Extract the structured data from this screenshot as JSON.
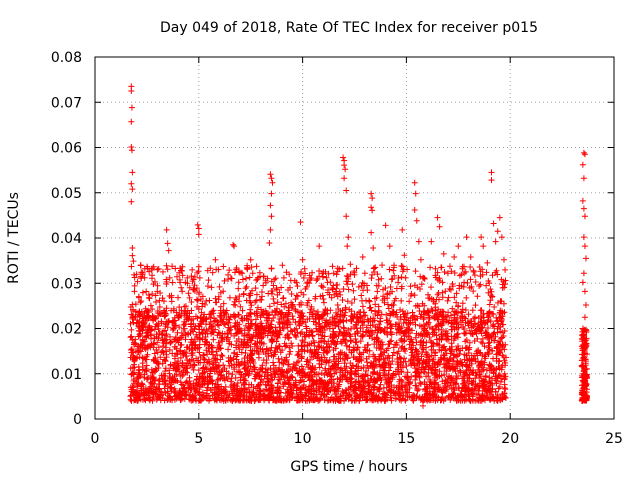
{
  "chart_data": {
    "type": "scatter",
    "title": "Day 049 of 2018, Rate Of TEC Index for receiver p015",
    "xlabel": "GPS time / hours",
    "ylabel": "ROTI / TECUs",
    "xlim": [
      0,
      25
    ],
    "ylim": [
      0,
      0.08
    ],
    "grid": true,
    "marker": "+",
    "marker_color": "#ff0000",
    "x_ticks": [
      "0",
      "5",
      "10",
      "15",
      "20",
      "25"
    ],
    "y_ticks": [
      "0",
      "0.01",
      "0.02",
      "0.03",
      "0.04",
      "0.05",
      "0.06",
      "0.07",
      "0.08"
    ],
    "series": [
      {
        "points": [
          [
            1.75,
            0.0735
          ],
          [
            1.75,
            0.0725
          ],
          [
            1.78,
            0.0688
          ],
          [
            1.75,
            0.0657
          ],
          [
            1.75,
            0.0601
          ],
          [
            1.78,
            0.0594
          ],
          [
            1.8,
            0.0545
          ],
          [
            1.75,
            0.052
          ],
          [
            1.8,
            0.0508
          ],
          [
            1.75,
            0.048
          ],
          [
            1.8,
            0.0378
          ],
          [
            1.8,
            0.0361
          ],
          [
            1.85,
            0.0349
          ],
          [
            1.9,
            0.0282
          ],
          [
            1.75,
            0.0231
          ],
          [
            1.8,
            0.0175
          ],
          [
            1.85,
            0.0139
          ],
          [
            1.9,
            0.0114
          ],
          [
            1.75,
            0.0098
          ],
          [
            1.8,
            0.0071
          ],
          [
            1.85,
            0.0052
          ],
          [
            1.9,
            0.0042
          ],
          [
            2.2,
            0.034
          ],
          [
            2.4,
            0.0332
          ],
          [
            2.6,
            0.0268
          ],
          [
            2.8,
            0.022
          ],
          [
            3.0,
            0.0282
          ],
          [
            3.1,
            0.019
          ],
          [
            2.3,
            0.0115
          ],
          [
            2.5,
            0.0088
          ],
          [
            2.7,
            0.0062
          ],
          [
            2.9,
            0.0105
          ],
          [
            3.45,
            0.0418
          ],
          [
            3.5,
            0.0388
          ],
          [
            3.55,
            0.0372
          ],
          [
            3.5,
            0.0331
          ],
          [
            3.6,
            0.0312
          ],
          [
            3.7,
            0.026
          ],
          [
            3.8,
            0.0215
          ],
          [
            3.9,
            0.0172
          ],
          [
            3.4,
            0.0128
          ],
          [
            3.6,
            0.009
          ],
          [
            3.8,
            0.0062
          ],
          [
            3.95,
            0.0109
          ],
          [
            4.1,
            0.0302
          ],
          [
            4.2,
            0.0282
          ],
          [
            4.3,
            0.0248
          ],
          [
            4.4,
            0.0225
          ],
          [
            4.5,
            0.0278
          ],
          [
            4.6,
            0.019
          ],
          [
            4.7,
            0.0152
          ],
          [
            4.8,
            0.0118
          ],
          [
            4.2,
            0.0095
          ],
          [
            4.5,
            0.0067
          ],
          [
            4.7,
            0.0051
          ],
          [
            4.95,
            0.0429
          ],
          [
            5.0,
            0.0421
          ],
          [
            5.0,
            0.0408
          ],
          [
            5.05,
            0.0312
          ],
          [
            5.1,
            0.0265
          ],
          [
            5.2,
            0.0221
          ],
          [
            5.3,
            0.0176
          ],
          [
            5.4,
            0.0143
          ],
          [
            5.0,
            0.0108
          ],
          [
            5.2,
            0.0082
          ],
          [
            5.4,
            0.0056
          ],
          [
            5.8,
            0.0352
          ],
          [
            6.0,
            0.0292
          ],
          [
            6.2,
            0.0255
          ],
          [
            6.4,
            0.0212
          ],
          [
            6.5,
            0.0268
          ],
          [
            5.7,
            0.0121
          ],
          [
            6.1,
            0.0096
          ],
          [
            6.3,
            0.0071
          ],
          [
            6.65,
            0.0385
          ],
          [
            6.7,
            0.0382
          ],
          [
            6.8,
            0.033
          ],
          [
            6.9,
            0.0288
          ],
          [
            7.0,
            0.0248
          ],
          [
            7.2,
            0.0222
          ],
          [
            7.3,
            0.0292
          ],
          [
            6.7,
            0.0121
          ],
          [
            7.0,
            0.0092
          ],
          [
            7.2,
            0.0067
          ],
          [
            7.5,
            0.0352
          ],
          [
            7.6,
            0.0322
          ],
          [
            7.8,
            0.0275
          ],
          [
            8.0,
            0.0242
          ],
          [
            8.1,
            0.0295
          ],
          [
            7.6,
            0.0128
          ],
          [
            7.9,
            0.0095
          ],
          [
            8.1,
            0.0062
          ],
          [
            8.45,
            0.0541
          ],
          [
            8.5,
            0.0532
          ],
          [
            8.55,
            0.0522
          ],
          [
            8.5,
            0.0498
          ],
          [
            8.45,
            0.0472
          ],
          [
            8.5,
            0.0448
          ],
          [
            8.45,
            0.0418
          ],
          [
            8.4,
            0.0389
          ],
          [
            8.5,
            0.0332
          ],
          [
            8.6,
            0.0295
          ],
          [
            8.8,
            0.0258
          ],
          [
            8.9,
            0.0221
          ],
          [
            8.5,
            0.0141
          ],
          [
            8.7,
            0.0099
          ],
          [
            8.9,
            0.0068
          ],
          [
            9.1,
            0.0312
          ],
          [
            9.3,
            0.0285
          ],
          [
            9.5,
            0.0252
          ],
          [
            9.7,
            0.0302
          ],
          [
            9.2,
            0.0128
          ],
          [
            9.5,
            0.0092
          ],
          [
            9.7,
            0.0063
          ],
          [
            9.9,
            0.0435
          ],
          [
            10.0,
            0.0352
          ],
          [
            10.1,
            0.0332
          ],
          [
            10.2,
            0.0292
          ],
          [
            10.3,
            0.0262
          ],
          [
            10.5,
            0.0226
          ],
          [
            9.95,
            0.0135
          ],
          [
            10.2,
            0.0097
          ],
          [
            10.4,
            0.0066
          ],
          [
            10.8,
            0.0382
          ],
          [
            11.0,
            0.0325
          ],
          [
            11.2,
            0.0302
          ],
          [
            11.4,
            0.0268
          ],
          [
            11.5,
            0.0322
          ],
          [
            10.9,
            0.0131
          ],
          [
            11.2,
            0.0098
          ],
          [
            11.4,
            0.007
          ],
          [
            11.95,
            0.0578
          ],
          [
            12.0,
            0.0571
          ],
          [
            12.0,
            0.0561
          ],
          [
            12.05,
            0.0552
          ],
          [
            12.0,
            0.0532
          ],
          [
            12.1,
            0.0505
          ],
          [
            12.1,
            0.0448
          ],
          [
            12.2,
            0.0402
          ],
          [
            12.15,
            0.0382
          ],
          [
            12.3,
            0.0342
          ],
          [
            12.4,
            0.0298
          ],
          [
            12.5,
            0.0265
          ],
          [
            12.1,
            0.0142
          ],
          [
            12.3,
            0.0102
          ],
          [
            12.5,
            0.0071
          ],
          [
            12.9,
            0.0358
          ],
          [
            13.0,
            0.0322
          ],
          [
            13.1,
            0.0295
          ],
          [
            13.2,
            0.0262
          ],
          [
            12.8,
            0.0132
          ],
          [
            13.0,
            0.0094
          ],
          [
            13.2,
            0.0066
          ],
          [
            13.3,
            0.0498
          ],
          [
            13.35,
            0.0488
          ],
          [
            13.3,
            0.0468
          ],
          [
            13.35,
            0.0461
          ],
          [
            13.3,
            0.0412
          ],
          [
            13.4,
            0.0378
          ],
          [
            13.5,
            0.0335
          ],
          [
            13.6,
            0.0282
          ],
          [
            13.4,
            0.0142
          ],
          [
            13.6,
            0.0101
          ],
          [
            13.7,
            0.0068
          ],
          [
            14.0,
            0.0428
          ],
          [
            14.2,
            0.0382
          ],
          [
            14.4,
            0.0335
          ],
          [
            14.6,
            0.0302
          ],
          [
            14.8,
            0.0418
          ],
          [
            14.9,
            0.0362
          ],
          [
            14.1,
            0.0135
          ],
          [
            14.5,
            0.0098
          ],
          [
            14.8,
            0.0064
          ],
          [
            15.4,
            0.0522
          ],
          [
            15.45,
            0.0498
          ],
          [
            15.4,
            0.0462
          ],
          [
            15.5,
            0.0438
          ],
          [
            15.6,
            0.0392
          ],
          [
            15.7,
            0.0352
          ],
          [
            15.8,
            0.0312
          ],
          [
            15.5,
            0.0142
          ],
          [
            15.7,
            0.0102
          ],
          [
            15.9,
            0.0062
          ],
          [
            15.8,
            0.0029
          ],
          [
            16.2,
            0.0392
          ],
          [
            16.4,
            0.0332
          ],
          [
            16.5,
            0.0445
          ],
          [
            16.6,
            0.0425
          ],
          [
            16.8,
            0.0365
          ],
          [
            17.0,
            0.0322
          ],
          [
            16.3,
            0.0132
          ],
          [
            16.7,
            0.0096
          ],
          [
            16.9,
            0.0062
          ],
          [
            17.3,
            0.0358
          ],
          [
            17.5,
            0.0382
          ],
          [
            17.7,
            0.0332
          ],
          [
            17.9,
            0.0402
          ],
          [
            18.1,
            0.0358
          ],
          [
            18.3,
            0.0318
          ],
          [
            17.4,
            0.0138
          ],
          [
            17.8,
            0.0099
          ],
          [
            18.2,
            0.0066
          ],
          [
            18.6,
            0.0402
          ],
          [
            18.7,
            0.0382
          ],
          [
            18.9,
            0.0345
          ],
          [
            19.1,
            0.0545
          ],
          [
            19.1,
            0.0528
          ],
          [
            19.2,
            0.0432
          ],
          [
            19.3,
            0.0392
          ],
          [
            19.4,
            0.0415
          ],
          [
            19.5,
            0.0445
          ],
          [
            19.6,
            0.0402
          ],
          [
            19.7,
            0.0352
          ],
          [
            19.75,
            0.0298
          ],
          [
            18.8,
            0.0142
          ],
          [
            19.2,
            0.0103
          ],
          [
            19.5,
            0.0071
          ],
          [
            19.7,
            0.0051
          ],
          [
            23.55,
            0.0588
          ],
          [
            23.6,
            0.0585
          ],
          [
            23.5,
            0.0562
          ],
          [
            23.55,
            0.0532
          ],
          [
            23.5,
            0.0482
          ],
          [
            23.55,
            0.0465
          ],
          [
            23.6,
            0.0448
          ],
          [
            23.55,
            0.0402
          ],
          [
            23.6,
            0.0382
          ],
          [
            23.65,
            0.0355
          ],
          [
            23.55,
            0.0322
          ],
          [
            23.5,
            0.0302
          ],
          [
            23.6,
            0.0282
          ],
          [
            23.65,
            0.0252
          ],
          [
            23.6,
            0.0225
          ],
          [
            23.55,
            0.0195
          ],
          [
            23.6,
            0.0172
          ],
          [
            23.5,
            0.0152
          ],
          [
            23.65,
            0.0128
          ],
          [
            23.55,
            0.0108
          ],
          [
            23.6,
            0.0088
          ],
          [
            23.5,
            0.0068
          ],
          [
            23.55,
            0.0052
          ],
          [
            23.6,
            0.0042
          ]
        ]
      }
    ],
    "dense_band": {
      "x_range": [
        1.7,
        19.8
      ],
      "core_range": [
        0.004,
        0.024
      ],
      "upper_range": [
        0.018,
        0.034
      ],
      "count": 4200
    },
    "dense_band_2": {
      "x_range": [
        23.45,
        23.7
      ],
      "core_range": [
        0.004,
        0.02
      ],
      "count": 160
    }
  }
}
